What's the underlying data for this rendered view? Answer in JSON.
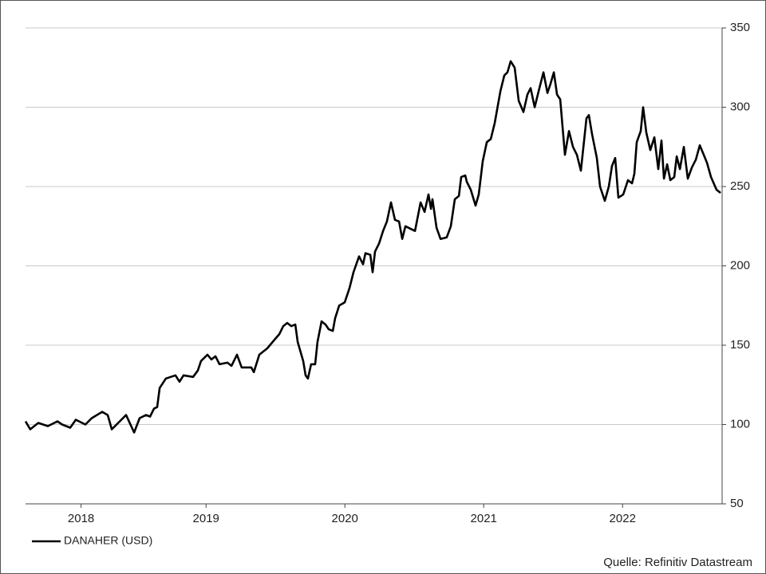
{
  "chart_data": {
    "type": "line",
    "source": "Quelle: Refinitiv Datastream",
    "x": [
      2017.7,
      2017.734,
      2017.792,
      2017.861,
      2017.93,
      2017.964,
      2018.022,
      2018.062,
      2018.131,
      2018.177,
      2018.252,
      2018.292,
      2018.321,
      2018.367,
      2018.424,
      2018.482,
      2018.522,
      2018.568,
      2018.597,
      2018.625,
      2018.648,
      2018.666,
      2018.711,
      2018.78,
      2018.809,
      2018.838,
      2018.907,
      2018.941,
      2018.964,
      2019.01,
      2019.039,
      2019.068,
      2019.097,
      2019.154,
      2019.183,
      2019.223,
      2019.257,
      2019.326,
      2019.344,
      2019.384,
      2019.441,
      2019.499,
      2019.528,
      2019.556,
      2019.585,
      2019.614,
      2019.643,
      2019.66,
      2019.7,
      2019.717,
      2019.734,
      2019.757,
      2019.786,
      2019.803,
      2019.832,
      2019.861,
      2019.884,
      2019.913,
      2019.93,
      2019.959,
      2019.999,
      2020.033,
      2020.062,
      2020.102,
      2020.131,
      2020.148,
      2020.183,
      2020.2,
      2020.217,
      2020.246,
      2020.275,
      2020.303,
      2020.332,
      2020.361,
      2020.39,
      2020.413,
      2020.436,
      2020.505,
      2020.545,
      2020.574,
      2020.602,
      2020.62,
      2020.631,
      2020.66,
      2020.689,
      2020.734,
      2020.763,
      2020.792,
      2020.821,
      2020.838,
      2020.867,
      2020.878,
      2020.907,
      2020.941,
      2020.964,
      2020.993,
      2021.022,
      2021.051,
      2021.079,
      2021.12,
      2021.148,
      2021.171,
      2021.194,
      2021.223,
      2021.252,
      2021.286,
      2021.315,
      2021.338,
      2021.367,
      2021.395,
      2021.43,
      2021.459,
      2021.482,
      2021.505,
      2021.528,
      2021.551,
      2021.585,
      2021.614,
      2021.643,
      2021.671,
      2021.7,
      2021.74,
      2021.757,
      2021.78,
      2021.815,
      2021.838,
      2021.872,
      2021.901,
      2021.924,
      2021.947,
      2021.97,
      2022.005,
      2022.039,
      2022.068,
      2022.085,
      2022.102,
      2022.131,
      2022.148,
      2022.171,
      2022.2,
      2022.229,
      2022.257,
      2022.28,
      2022.298,
      2022.321,
      2022.344,
      2022.372,
      2022.39,
      2022.413,
      2022.441,
      2022.47,
      2022.499,
      2022.528,
      2022.556,
      2022.585,
      2022.608,
      2022.637,
      2022.677,
      2022.706
    ],
    "series": [
      {
        "name": "DANAHER (USD)",
        "color": "#000000",
        "values": [
          102,
          97,
          101,
          99,
          102,
          100,
          98,
          103,
          100,
          104,
          108,
          106,
          97,
          101,
          106,
          95,
          104,
          106,
          105,
          110,
          111,
          123,
          129,
          131,
          127,
          131,
          130,
          134,
          140,
          144,
          141,
          143,
          138,
          139,
          137,
          144,
          136,
          136,
          133,
          144,
          148,
          154,
          157,
          162,
          164,
          162,
          163,
          152,
          140,
          131,
          129,
          138,
          138,
          152,
          165,
          163,
          160,
          159,
          167,
          175,
          177,
          186,
          196,
          206,
          201,
          208,
          207,
          196,
          209,
          214,
          222,
          228,
          240,
          229,
          228,
          217,
          225,
          222,
          240,
          234,
          245,
          236,
          242,
          224,
          217,
          218,
          225,
          242,
          244,
          256,
          257,
          253,
          248,
          238,
          245,
          266,
          278,
          280,
          290,
          310,
          320,
          322,
          329,
          325,
          304,
          297,
          308,
          312,
          300,
          310,
          322,
          309,
          315,
          322,
          308,
          305,
          270,
          285,
          275,
          270,
          260,
          293,
          295,
          283,
          268,
          250,
          241,
          250,
          263,
          268,
          243,
          245,
          254,
          252,
          258,
          278,
          285,
          300,
          284,
          273,
          281,
          261,
          279,
          255,
          264,
          254,
          256,
          269,
          261,
          275,
          255,
          262,
          267,
          276,
          270,
          265,
          256,
          248,
          246
        ]
      }
    ],
    "xlim": [
      2017.7,
      2022.717
    ],
    "xticks": [
      {
        "value": 2018.1,
        "label": "2018"
      },
      {
        "value": 2019,
        "label": "2019"
      },
      {
        "value": 2020,
        "label": "2020"
      },
      {
        "value": 2021,
        "label": "2021"
      },
      {
        "value": 2022,
        "label": "2022"
      }
    ],
    "ylim": [
      50,
      350
    ],
    "yticks": [
      50,
      100,
      150,
      200,
      250,
      300,
      350
    ],
    "grid": true,
    "legend": "bottom-left"
  }
}
